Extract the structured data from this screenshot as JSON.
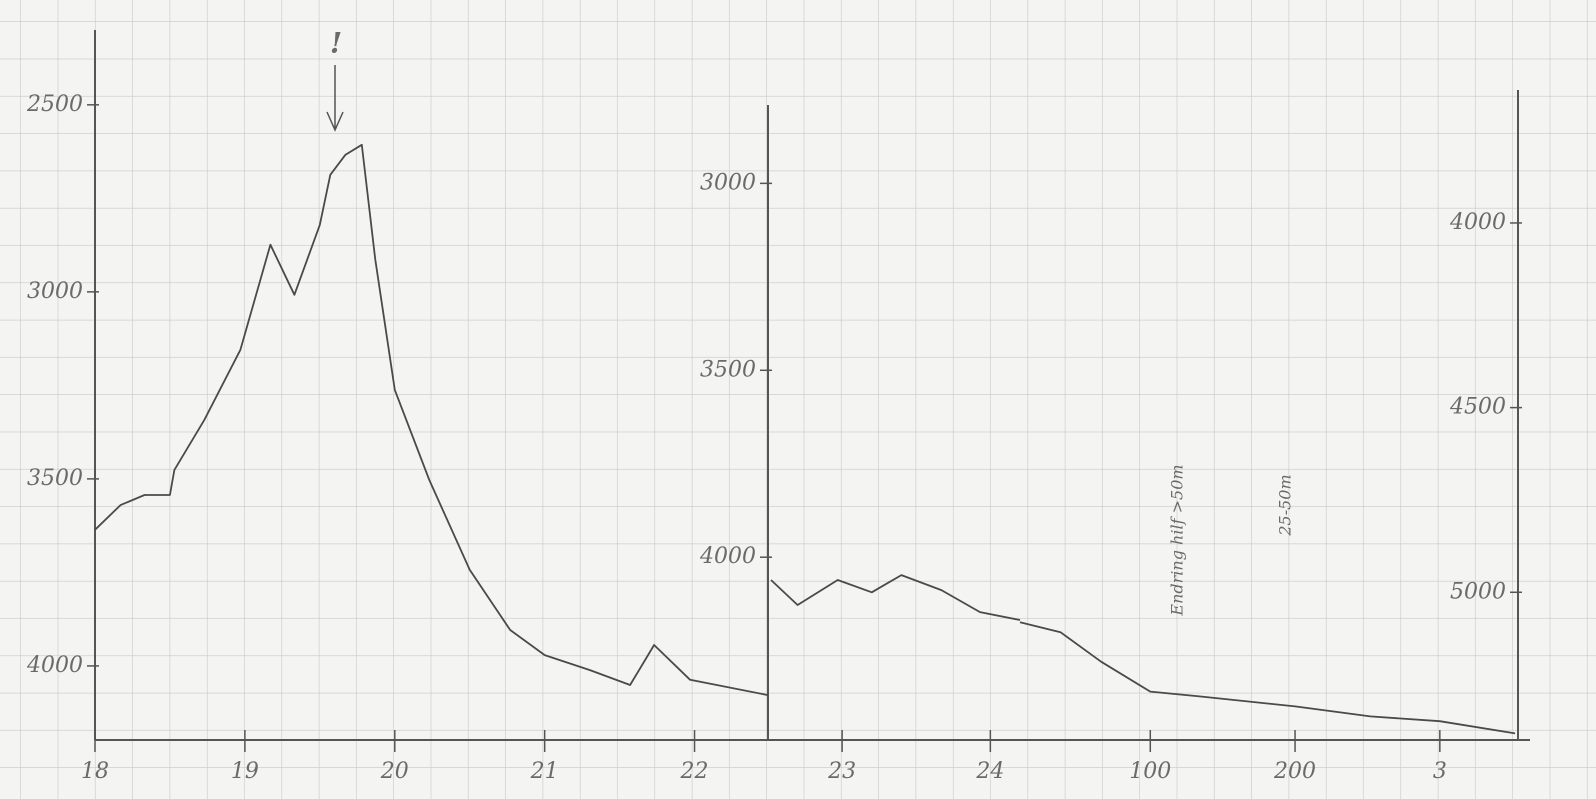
{
  "chart_data": [
    {
      "type": "line",
      "color": "#4a4a4a",
      "inverted": true,
      "xlim": [
        18,
        22.49
      ],
      "ylim": [
        2300,
        4198
      ],
      "xticks": [
        18,
        19,
        20,
        21,
        22
      ],
      "yticks": [
        2500,
        3000,
        3500,
        4000
      ],
      "x": [
        18.0,
        18.17,
        18.33,
        18.5,
        18.53,
        18.73,
        18.97,
        19.17,
        19.33,
        19.5,
        19.57,
        19.67,
        19.78,
        19.87,
        20.0,
        20.23,
        20.5,
        20.77,
        21.0,
        21.3,
        21.57,
        21.73,
        21.97,
        22.49
      ],
      "values": [
        3636,
        3570,
        3543,
        3543,
        3476,
        3342,
        3155,
        2874,
        3008,
        2821,
        2687,
        2634,
        2607,
        2914,
        3262,
        3503,
        3743,
        3904,
        3971,
        4011,
        4051,
        3944,
        4037,
        4078
      ],
      "annotations": [
        "!"
      ]
    },
    {
      "type": "line",
      "color": "#4a4a4a",
      "inverted": true,
      "xlim": [
        22.5,
        24.2
      ],
      "ylim": [
        2777,
        4489
      ],
      "xticks": [
        23,
        24
      ],
      "yticks": [
        3000,
        3500,
        4000
      ],
      "x": [
        22.52,
        22.7,
        22.97,
        23.2,
        23.4,
        23.67,
        23.93,
        24.2
      ],
      "values": [
        4061,
        4128,
        4061,
        4094,
        4048,
        4088,
        4147,
        4168
      ]
    },
    {
      "type": "line",
      "color": "#4a4a4a",
      "inverted": true,
      "xlim": [
        10,
        354
      ],
      "ylim": [
        3640,
        5400
      ],
      "xticks": [
        100,
        200,
        {
          "value": 300,
          "label": "3"
        }
      ],
      "yticks": [
        4000,
        4500,
        5000
      ],
      "x": [
        10,
        38,
        66,
        100,
        134,
        200,
        252,
        300,
        352
      ],
      "values": [
        5081,
        5108,
        5188,
        5269,
        5282,
        5309,
        5336,
        5349,
        5382
      ],
      "annotations": [
        "Endring hilf >50m",
        "25-50m"
      ]
    }
  ]
}
